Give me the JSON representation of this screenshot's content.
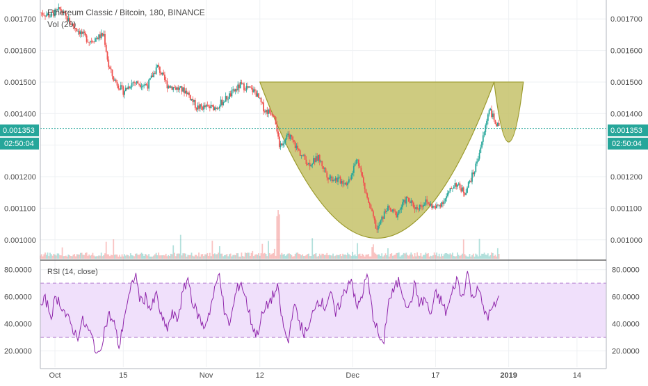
{
  "header": {
    "title": "Ethereum Classic / Bitcoin, 180, BINANCE",
    "volume_label": "Vol (20)"
  },
  "price_badge": {
    "value": "0.001353",
    "countdown": "02:50:04"
  },
  "rsi": {
    "label": "RSI (14, close)"
  },
  "colors": {
    "up": "#26a69a",
    "down": "#ef5350",
    "rsi_line": "#8e24aa",
    "rsi_band": "#f0e0fb",
    "pattern_fill": "#c5c26a",
    "pattern_stroke": "#9b9a2c",
    "price_line": "#26a69a"
  },
  "chart_data": [
    {
      "type": "candlestick",
      "title": "Ethereum Classic / Bitcoin, 180, BINANCE",
      "ylim": [
        0.00094,
        0.00176
      ],
      "y_ticks": [
        "0.001700",
        "0.001600",
        "0.001500",
        "0.001400",
        "0.001300",
        "0.001200",
        "0.001100",
        "0.001000"
      ],
      "y_tick_values": [
        0.0017,
        0.0016,
        0.0015,
        0.0014,
        0.0013,
        0.0012,
        0.0011,
        0.001
      ],
      "x_ticks": [
        "Oct",
        "15",
        "Nov",
        "12",
        "Dec",
        "17",
        "2019",
        "14"
      ],
      "x_tick_days": [
        3,
        17,
        34,
        45,
        64,
        81,
        96,
        110
      ],
      "x_range_days": [
        0,
        116
      ],
      "last_price": 0.001353,
      "price_path": [
        {
          "day": 0,
          "price": 0.00172
        },
        {
          "day": 2,
          "price": 0.00171
        },
        {
          "day": 4,
          "price": 0.00173
        },
        {
          "day": 6,
          "price": 0.00169
        },
        {
          "day": 8,
          "price": 0.00166
        },
        {
          "day": 10,
          "price": 0.00163
        },
        {
          "day": 13,
          "price": 0.00165
        },
        {
          "day": 14,
          "price": 0.00155
        },
        {
          "day": 15,
          "price": 0.00151
        },
        {
          "day": 17,
          "price": 0.00147
        },
        {
          "day": 19,
          "price": 0.0015
        },
        {
          "day": 22,
          "price": 0.00149
        },
        {
          "day": 24,
          "price": 0.00155
        },
        {
          "day": 26,
          "price": 0.00149
        },
        {
          "day": 30,
          "price": 0.00147
        },
        {
          "day": 32,
          "price": 0.00142
        },
        {
          "day": 36,
          "price": 0.00142
        },
        {
          "day": 39,
          "price": 0.00146
        },
        {
          "day": 41,
          "price": 0.00149
        },
        {
          "day": 44,
          "price": 0.00147
        },
        {
          "day": 46,
          "price": 0.00141
        },
        {
          "day": 48,
          "price": 0.0014
        },
        {
          "day": 49,
          "price": 0.0013
        },
        {
          "day": 51,
          "price": 0.00133
        },
        {
          "day": 53,
          "price": 0.00128
        },
        {
          "day": 55,
          "price": 0.00124
        },
        {
          "day": 57,
          "price": 0.00126
        },
        {
          "day": 59,
          "price": 0.0012
        },
        {
          "day": 61,
          "price": 0.00119
        },
        {
          "day": 63,
          "price": 0.00118
        },
        {
          "day": 65,
          "price": 0.00126
        },
        {
          "day": 67,
          "price": 0.00113
        },
        {
          "day": 69,
          "price": 0.00103
        },
        {
          "day": 71,
          "price": 0.0011
        },
        {
          "day": 73,
          "price": 0.00108
        },
        {
          "day": 75,
          "price": 0.00113
        },
        {
          "day": 77,
          "price": 0.0011
        },
        {
          "day": 79,
          "price": 0.00112
        },
        {
          "day": 81,
          "price": 0.0011
        },
        {
          "day": 83,
          "price": 0.00113
        },
        {
          "day": 85,
          "price": 0.00118
        },
        {
          "day": 87,
          "price": 0.00115
        },
        {
          "day": 89,
          "price": 0.00122
        },
        {
          "day": 91,
          "price": 0.00134
        },
        {
          "day": 92,
          "price": 0.00142
        },
        {
          "day": 93,
          "price": 0.00138
        },
        {
          "day": 94,
          "price": 0.001353
        }
      ],
      "pattern": {
        "cup_rim_price": 0.0015,
        "cup_start_day": 45,
        "cup_end_day": 93,
        "cup_bottom_price": 0.001005,
        "handle_start_day": 93,
        "handle_end_day": 99,
        "handle_bottom_price": 0.00131
      }
    },
    {
      "type": "line",
      "title": "RSI (14, close)",
      "ylim": [
        8,
        86
      ],
      "y_ticks": [
        "80.0000",
        "60.0000",
        "40.0000",
        "20.0000"
      ],
      "y_tick_values": [
        80,
        60,
        40,
        20
      ],
      "bands": [
        30,
        70
      ],
      "values": [
        52,
        58,
        46,
        60,
        54,
        45,
        38,
        30,
        42,
        36,
        28,
        15,
        33,
        47,
        40,
        22,
        48,
        62,
        78,
        56,
        60,
        50,
        62,
        44,
        36,
        47,
        43,
        62,
        74,
        54,
        46,
        37,
        48,
        63,
        79,
        45,
        40,
        61,
        72,
        58,
        42,
        31,
        45,
        53,
        60,
        66,
        40,
        25,
        55,
        43,
        33,
        36,
        54,
        58,
        52,
        64,
        46,
        57,
        66,
        75,
        50,
        61,
        76,
        48,
        34,
        22,
        56,
        64,
        72,
        60,
        51,
        69,
        54,
        59,
        46,
        62,
        57,
        48,
        61,
        74,
        58,
        79,
        57,
        70,
        50,
        46,
        52,
        59
      ]
    }
  ]
}
